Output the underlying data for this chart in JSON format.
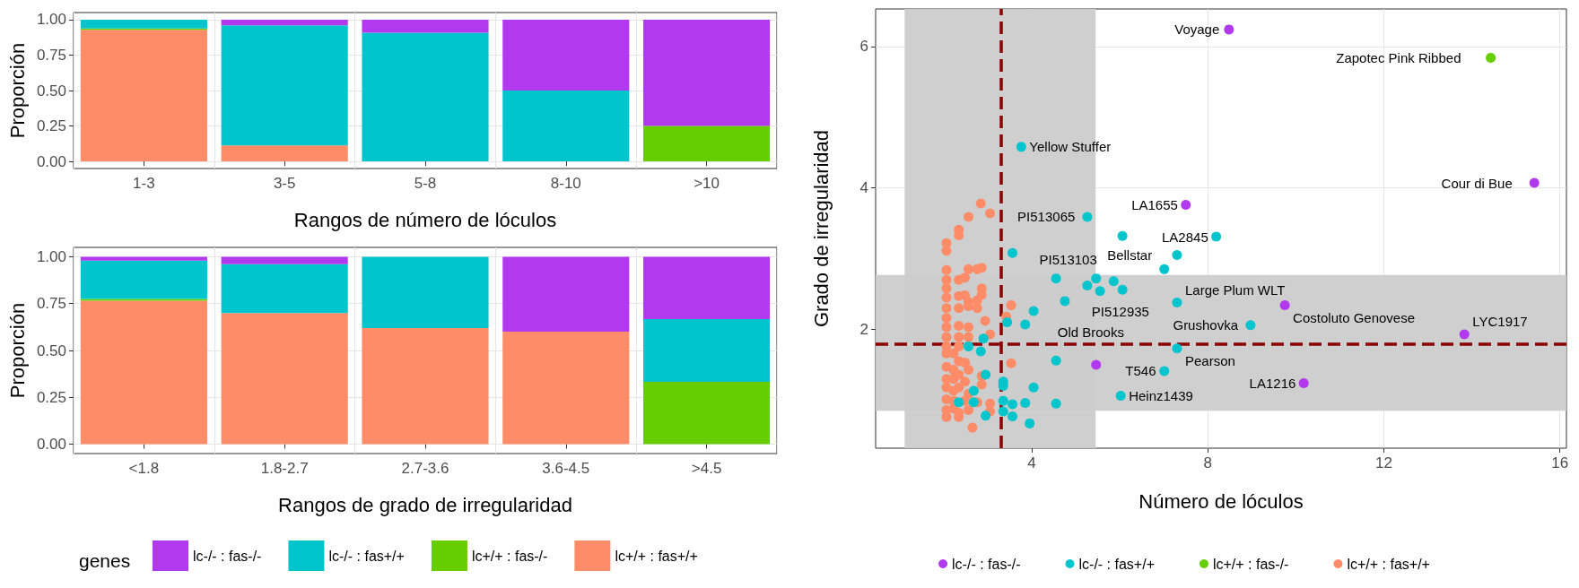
{
  "chart_data": [
    {
      "type": "bar",
      "stacked": true,
      "xlabel": "Rangos de número de lóculos",
      "ylabel": "Proporción",
      "categories": [
        "1-3",
        "3-5",
        "5-8",
        "8-10",
        ">10"
      ],
      "ylim": [
        -0.05,
        1.05
      ],
      "yticks": [
        {
          "value": 0,
          "label": "0.00"
        },
        {
          "value": 0.25,
          "label": "0.25"
        },
        {
          "value": 0.5,
          "label": "0.50"
        },
        {
          "value": 0.75,
          "label": "0.75"
        },
        {
          "value": 1,
          "label": "1.00"
        }
      ],
      "grid": true,
      "legend": false,
      "series": [
        {
          "color": "#ff8c69",
          "values": [
            0.928,
            0.112,
            0,
            0,
            0
          ]
        },
        {
          "color": "#66cd00",
          "values": [
            0.01,
            0,
            0,
            0,
            0.25
          ]
        },
        {
          "color": "#00c5cd",
          "values": [
            0.062,
            0.848,
            0.907,
            0.5,
            0
          ]
        },
        {
          "color": "#b23aee",
          "values": [
            0,
            0.04,
            0.093,
            0.5,
            0.75
          ]
        }
      ]
    },
    {
      "type": "bar",
      "stacked": true,
      "xlabel": "Rangos de grado de irregularidad",
      "ylabel": "Proporción",
      "legend_title": "genes",
      "categories": [
        "<1.8",
        "1.8-2.7",
        "2.7-3.6",
        "3.6-4.5",
        ">4.5"
      ],
      "ylim": [
        -0.05,
        1.05
      ],
      "yticks": [
        {
          "value": 0,
          "label": "0.00"
        },
        {
          "value": 0.25,
          "label": "0.25"
        },
        {
          "value": 0.5,
          "label": "0.50"
        },
        {
          "value": 0.75,
          "label": "0.75"
        },
        {
          "value": 1,
          "label": "1.00"
        }
      ],
      "grid": true,
      "legend": "bottom",
      "series": [
        {
          "name": "lc+/+ : fas+/+",
          "color": "#ff8c69",
          "values": [
            0.765,
            0.7,
            0.62,
            0.6,
            0
          ]
        },
        {
          "name": "lc+/+ : fas-/-",
          "color": "#66cd00",
          "values": [
            0.01,
            0,
            0,
            0,
            0.333
          ]
        },
        {
          "name": "lc-/- : fas+/+",
          "color": "#00c5cd",
          "values": [
            0.205,
            0.26,
            0.38,
            0,
            0.334
          ]
        },
        {
          "name": "lc-/- : fas-/-",
          "color": "#b23aee",
          "values": [
            0.02,
            0.04,
            0,
            0.4,
            0.333
          ]
        }
      ]
    },
    {
      "type": "scatter",
      "xlabel": "Número de lóculos",
      "ylabel": "Grado de irregularidad",
      "xlim": [
        0.45,
        16.15
      ],
      "xticks": [
        4,
        8,
        12,
        16
      ],
      "ylim": [
        0.32,
        6.53
      ],
      "yticks": [
        2,
        4,
        6
      ],
      "grid": true,
      "legend": "bottom",
      "marker": "circle",
      "bands": [
        {
          "axis": "x",
          "from": 1.11,
          "to": 5.45,
          "color": "#cccccc"
        },
        {
          "axis": "y",
          "from": 0.85,
          "to": 2.77,
          "color": "#cccccc"
        }
      ],
      "ref_lines": [
        {
          "axis": "x",
          "value": 3.29,
          "color": "#8b0000",
          "line_style": "dashed"
        },
        {
          "axis": "y",
          "value": 1.79,
          "color": "#8b0000",
          "line_style": "dashed"
        }
      ],
      "annotations": [
        {
          "text": "Voyage",
          "x": 8.48,
          "y": 6.24
        },
        {
          "text": "Zapotec Pink Ribbed",
          "x": 14.43,
          "y": 5.84
        },
        {
          "text": "Cour di Bue",
          "x": 15.42,
          "y": 4.07
        },
        {
          "text": "Yellow Stuffer",
          "x": 3.76,
          "y": 4.58
        },
        {
          "text": "LA1655",
          "x": 7.5,
          "y": 3.76
        },
        {
          "text": "PI513065",
          "x": 5.26,
          "y": 3.59
        },
        {
          "text": "LA2845",
          "x": 8.19,
          "y": 3.31
        },
        {
          "text": "Bellstar",
          "x": 7.3,
          "y": 3.05
        },
        {
          "text": "PI513103",
          "x": 5.86,
          "y": 2.68
        },
        {
          "text": "PI512935",
          "x": 6.06,
          "y": 2.56
        },
        {
          "text": "Large Plum WLT",
          "x": 7.3,
          "y": 2.38
        },
        {
          "text": "Costoluto Genovese",
          "x": 9.75,
          "y": 2.34
        },
        {
          "text": "Grushovka",
          "x": 8.97,
          "y": 2.06
        },
        {
          "text": "Pearson",
          "x": 7.3,
          "y": 1.73
        },
        {
          "text": "LYC1917",
          "x": 13.83,
          "y": 1.93
        },
        {
          "text": "Old Brooks",
          "x": 5.46,
          "y": 1.5
        },
        {
          "text": "T546",
          "x": 7.01,
          "y": 1.41
        },
        {
          "text": "LA1216",
          "x": 10.18,
          "y": 1.24
        },
        {
          "text": "Heinz1439",
          "x": 6.02,
          "y": 1.06
        }
      ],
      "series": [
        {
          "name": "lc-/- : fas-/-",
          "color": "#b23aee",
          "x": [
            8.48,
            15.42,
            7.5,
            9.75,
            13.83,
            10.18,
            5.46
          ],
          "values": [
            6.24,
            4.07,
            3.76,
            2.34,
            1.93,
            1.24,
            1.5
          ]
        },
        {
          "name": "lc-/- : fas+/+",
          "color": "#00c5cd",
          "x": [
            3.76,
            3.56,
            5.26,
            6.06,
            8.19,
            7.3,
            7.01,
            4.55,
            4.75,
            5.26,
            5.46,
            5.55,
            5.86,
            6.06,
            7.3,
            8.97,
            7.3,
            7.01,
            6.02,
            4.04,
            3.85,
            3.44,
            2.9,
            2.56,
            2.84,
            4.55,
            2.95,
            3.35,
            3.35,
            4.04,
            2.68,
            2.34,
            2.68,
            3.35,
            3.56,
            3.85,
            4.55,
            3.35,
            2.95,
            3.56,
            3.95
          ],
          "values": [
            4.58,
            3.08,
            3.59,
            3.32,
            3.31,
            3.05,
            2.85,
            2.72,
            2.4,
            2.62,
            2.72,
            2.54,
            2.68,
            2.56,
            2.38,
            2.06,
            1.73,
            1.41,
            1.06,
            2.26,
            2.07,
            2.1,
            1.87,
            1.76,
            1.69,
            1.56,
            1.36,
            1.26,
            1.2,
            1.18,
            1.13,
            0.97,
            0.97,
            0.99,
            0.94,
            0.96,
            0.95,
            0.84,
            0.78,
            0.77,
            0.67
          ]
        },
        {
          "name": "lc+/+ : fas-/-",
          "color": "#66cd00",
          "x": [
            14.43
          ],
          "values": [
            5.84
          ]
        },
        {
          "name": "lc+/+ : fas+/+",
          "color": "#ff8c69",
          "x": [
            2.84,
            3.05,
            2.56,
            2.34,
            2.34,
            2.06,
            2.06,
            2.06,
            2.06,
            2.34,
            2.48,
            2.56,
            2.76,
            2.86,
            2.06,
            2.06,
            2.34,
            2.48,
            2.56,
            2.76,
            2.86,
            2.86,
            2.06,
            2.34,
            2.56,
            2.76,
            3.53,
            3.42,
            2.06,
            2.06,
            2.34,
            2.56,
            2.94,
            3.05,
            2.06,
            2.34,
            2.56,
            2.06,
            2.34,
            2.06,
            2.22,
            2.34,
            2.48,
            2.06,
            2.22,
            2.34,
            2.56,
            2.06,
            2.22,
            2.48,
            2.86,
            2.06,
            2.22,
            2.34,
            2.56,
            2.86,
            2.06,
            2.22,
            2.48,
            2.76,
            2.06,
            2.22,
            2.34,
            2.56,
            3.05,
            3.05,
            2.06,
            2.34,
            2.65,
            3.53
          ],
          "values": [
            3.78,
            3.64,
            3.59,
            3.41,
            3.33,
            3.22,
            3.11,
            2.84,
            2.7,
            2.7,
            2.73,
            2.85,
            2.85,
            2.87,
            2.58,
            2.45,
            2.47,
            2.48,
            2.39,
            2.41,
            2.58,
            2.49,
            2.3,
            2.3,
            2.33,
            2.3,
            2.34,
            2.18,
            2.16,
            2.03,
            2.05,
            2.03,
            2.12,
            1.93,
            1.89,
            1.89,
            1.89,
            1.76,
            1.76,
            1.66,
            1.66,
            1.55,
            1.53,
            1.47,
            1.43,
            1.36,
            1.43,
            1.3,
            1.3,
            1.26,
            1.34,
            1.18,
            1.13,
            1.18,
            1.09,
            1.22,
            1.01,
            0.99,
            0.99,
            0.97,
            0.86,
            0.88,
            0.82,
            0.86,
            0.95,
            0.84,
            0.76,
            0.76,
            0.61,
            1.52
          ]
        }
      ]
    }
  ]
}
